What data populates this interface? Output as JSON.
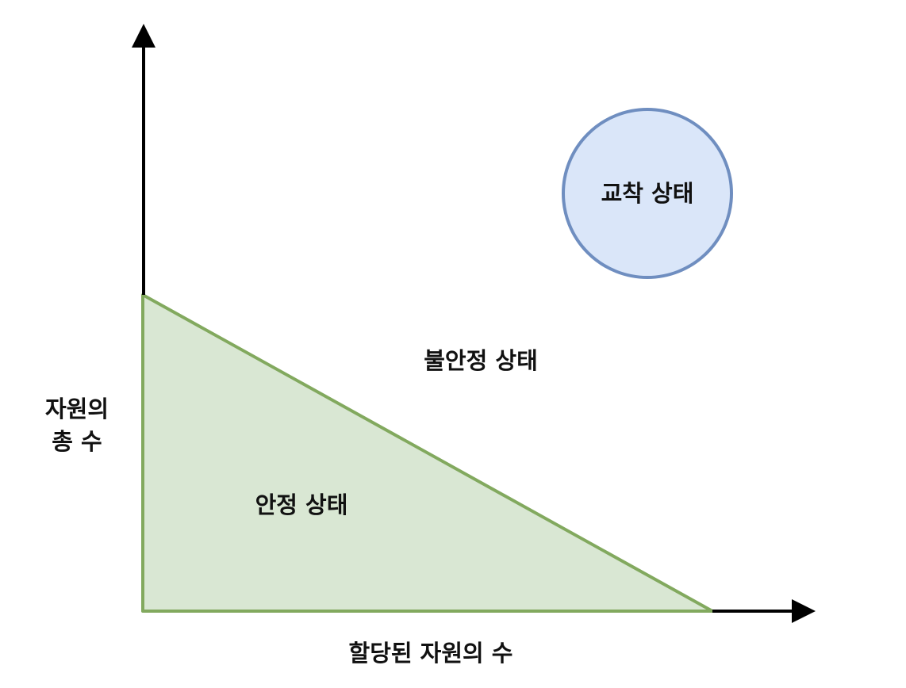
{
  "diagram": {
    "axes": {
      "x_label": "할당된 자원의 수",
      "y_label_lines": [
        "자원의",
        "총 수"
      ]
    },
    "regions": {
      "safe": {
        "label": "안정 상태",
        "fill": "#d9e7d3",
        "stroke": "#82a95e"
      },
      "unsafe": {
        "label": "불안정 상태"
      },
      "deadlock": {
        "label": "교착 상태",
        "fill": "#dae6f9",
        "stroke": "#6f8ec0"
      }
    },
    "colors": {
      "axis": "#000000"
    }
  }
}
